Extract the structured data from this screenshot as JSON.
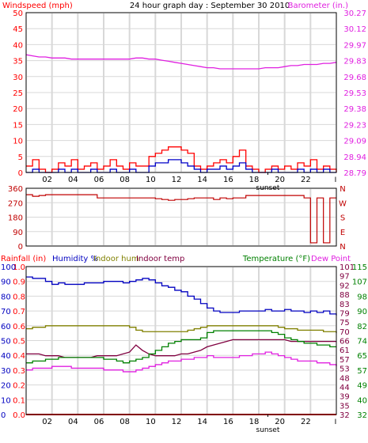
{
  "colors": {
    "grid": "#d8d8d8",
    "windspeed": "#ff0000",
    "windavg": "#0000c8",
    "barometer": "#e020e0",
    "winddir": "#c00000",
    "rain": "#ff0000",
    "humidity": "#0000c0",
    "indoor_hum": "#808000",
    "indoor_temp": "#800040",
    "temperature": "#008000",
    "dewpoint": "#e020e0"
  },
  "header": {
    "title": "24 hour graph day : September 30 2010"
  },
  "x_axis": {
    "hour_labels": [
      "02",
      "04",
      "06",
      "08",
      "10",
      "12",
      "14",
      "16",
      "18",
      "20",
      "22"
    ],
    "end_tick": "I",
    "sunset_label": "sunset"
  },
  "chart_data": [
    {
      "type": "line",
      "panel": "wind-barometer",
      "ylabel": "Windspeed (mph)",
      "ylabel_right": "Barometer (in.)",
      "ylim": [
        0,
        50
      ],
      "yticks": [
        "50",
        "45",
        "40",
        "35",
        "30",
        "25",
        "20",
        "15",
        "10",
        "5",
        "0"
      ],
      "y2lim": [
        28.79,
        30.27
      ],
      "y2ticks": [
        "30.27",
        "30.12",
        "29.97",
        "29.83",
        "29.68",
        "29.53",
        "29.38",
        "29.23",
        "29.09",
        "28.94",
        "28.79"
      ],
      "x": [
        0,
        0.5,
        1,
        1.5,
        2,
        2.5,
        3,
        3.5,
        4,
        4.5,
        5,
        5.5,
        6,
        6.5,
        7,
        7.5,
        8,
        8.5,
        9,
        9.5,
        10,
        10.5,
        11,
        11.5,
        12,
        12.5,
        13,
        13.5,
        14,
        14.5,
        15,
        15.5,
        16,
        16.5,
        17,
        17.5,
        18,
        18.5,
        19,
        19.5,
        20,
        20.5,
        21,
        21.5,
        22,
        22.5,
        23,
        23.5,
        24
      ],
      "series": [
        {
          "name": "Windspeed",
          "values": [
            2,
            4,
            1,
            0,
            1,
            3,
            2,
            4,
            1,
            2,
            3,
            1,
            2,
            4,
            2,
            1,
            3,
            2,
            2,
            5,
            6,
            7,
            8,
            8,
            7,
            6,
            2,
            1,
            2,
            3,
            4,
            3,
            5,
            7,
            2,
            1,
            0,
            1,
            2,
            1,
            2,
            1,
            3,
            2,
            4,
            1,
            2,
            1,
            0
          ]
        },
        {
          "values": [
            0,
            1,
            0,
            0,
            0,
            1,
            0,
            1,
            0,
            0,
            1,
            0,
            0,
            1,
            0,
            0,
            1,
            0,
            0,
            2,
            3,
            3,
            4,
            4,
            3,
            2,
            1,
            0,
            1,
            1,
            2,
            1,
            2,
            3,
            1,
            0,
            0,
            0,
            1,
            0,
            0,
            0,
            1,
            0,
            1,
            0,
            1,
            0,
            0
          ]
        },
        {
          "name": "Barometer",
          "values": [
            29.88,
            29.87,
            29.86,
            29.86,
            29.85,
            29.85,
            29.85,
            29.84,
            29.84,
            29.84,
            29.84,
            29.84,
            29.84,
            29.84,
            29.84,
            29.84,
            29.84,
            29.85,
            29.85,
            29.84,
            29.84,
            29.83,
            29.82,
            29.81,
            29.8,
            29.79,
            29.78,
            29.77,
            29.76,
            29.76,
            29.75,
            29.75,
            29.75,
            29.75,
            29.75,
            29.75,
            29.75,
            29.76,
            29.76,
            29.76,
            29.77,
            29.78,
            29.78,
            29.79,
            29.79,
            29.79,
            29.8,
            29.8,
            29.81
          ]
        }
      ]
    },
    {
      "type": "line",
      "panel": "wind-direction",
      "ylim": [
        0,
        360
      ],
      "yticks": [
        "360",
        "270",
        "180",
        "90",
        "0"
      ],
      "y2ticks": [
        "N",
        "W",
        "S",
        "E",
        "N"
      ],
      "x": [
        0,
        0.5,
        1,
        1.5,
        2,
        2.5,
        3,
        3.5,
        4,
        4.5,
        5,
        5.5,
        6,
        6.5,
        7,
        7.5,
        8,
        8.5,
        9,
        9.5,
        10,
        10.5,
        11,
        11.5,
        12,
        12.5,
        13,
        13.5,
        14,
        14.5,
        15,
        15.5,
        16,
        16.5,
        17,
        17.5,
        18,
        18.5,
        19,
        19.5,
        20,
        20.5,
        21,
        21.5,
        22,
        22.5,
        23,
        23.5,
        24
      ],
      "series": [
        {
          "values": [
            320,
            310,
            315,
            320,
            320,
            320,
            320,
            320,
            320,
            320,
            320,
            300,
            300,
            300,
            300,
            300,
            300,
            300,
            300,
            300,
            295,
            290,
            285,
            290,
            290,
            295,
            300,
            300,
            300,
            290,
            300,
            295,
            300,
            300,
            315,
            315,
            315,
            315,
            315,
            315,
            315,
            315,
            315,
            300,
            20,
            300,
            20,
            300,
            300
          ]
        }
      ]
    },
    {
      "type": "line",
      "panel": "temperature-humidity",
      "ylabel": "Rainfall (in)",
      "legend": [
        "Humidity %",
        "Indoor hum",
        "Indoor temp",
        "Temperature (°F)",
        "Dew Point"
      ],
      "ylim": [
        0,
        1.0
      ],
      "yticks_rain": [
        "1.0",
        "0.9",
        "0.8",
        "0.7",
        "0.6",
        "0.5",
        "0.4",
        "0.3",
        "0.2",
        "0.1",
        "0.0"
      ],
      "yticks_humidity": [
        "100",
        "90",
        "80",
        "70",
        "60",
        "50",
        "40",
        "30",
        "20",
        "10",
        "0"
      ],
      "yticks_temp_inner": [
        "101",
        "97",
        "92",
        "88",
        "83",
        "79",
        "75",
        "70",
        "66",
        "61",
        "57",
        "53",
        "48",
        "44",
        "39",
        "35",
        "32"
      ],
      "yticks_temp_outer": [
        "115",
        "107",
        "98",
        "90",
        "82",
        "74",
        "65",
        "57",
        "49",
        "40",
        "32"
      ],
      "x": [
        0,
        0.5,
        1,
        1.5,
        2,
        2.5,
        3,
        3.5,
        4,
        4.5,
        5,
        5.5,
        6,
        6.5,
        7,
        7.5,
        8,
        8.5,
        9,
        9.5,
        10,
        10.5,
        11,
        11.5,
        12,
        12.5,
        13,
        13.5,
        14,
        14.5,
        15,
        15.5,
        16,
        16.5,
        17,
        17.5,
        18,
        18.5,
        19,
        19.5,
        20,
        20.5,
        21,
        21.5,
        22,
        22.5,
        23,
        23.5,
        24
      ],
      "series": [
        {
          "name": "Humidity %",
          "values": [
            93,
            92,
            92,
            90,
            88,
            89,
            88,
            88,
            88,
            89,
            89,
            89,
            90,
            90,
            90,
            89,
            90,
            91,
            92,
            91,
            89,
            87,
            86,
            84,
            83,
            80,
            78,
            75,
            72,
            70,
            69,
            69,
            69,
            70,
            70,
            70,
            70,
            71,
            70,
            70,
            71,
            70,
            70,
            69,
            70,
            69,
            70,
            68,
            67
          ]
        },
        {
          "name": "Indoor hum",
          "values": [
            58,
            59,
            59,
            60,
            60,
            60,
            60,
            60,
            60,
            60,
            60,
            60,
            60,
            60,
            60,
            60,
            59,
            57,
            56,
            56,
            56,
            56,
            56,
            56,
            56,
            57,
            58,
            59,
            60,
            60,
            60,
            60,
            60,
            60,
            60,
            60,
            60,
            60,
            60,
            59,
            58,
            58,
            57,
            57,
            57,
            57,
            56,
            56,
            55
          ]
        },
        {
          "name": "Indoor temp",
          "values": [
            66,
            66,
            66,
            65,
            65,
            65,
            64,
            64,
            64,
            64,
            64,
            65,
            65,
            65,
            65,
            66,
            67,
            71,
            68,
            66,
            65,
            65,
            65,
            65,
            66,
            66,
            67,
            68,
            70,
            71,
            72,
            73,
            74,
            74,
            74,
            74,
            74,
            74,
            74,
            74,
            74,
            73,
            73,
            73,
            73,
            73,
            73,
            73,
            73
          ]
        },
        {
          "name": "Temperature (°F)",
          "values": [
            61,
            62,
            62,
            63,
            63,
            64,
            64,
            64,
            64,
            64,
            64,
            64,
            63,
            63,
            62,
            61,
            62,
            63,
            64,
            66,
            68,
            70,
            72,
            73,
            74,
            74,
            74,
            75,
            78,
            79,
            79,
            79,
            79,
            79,
            79,
            79,
            79,
            79,
            78,
            77,
            75,
            74,
            73,
            72,
            72,
            71,
            71,
            70,
            70
          ]
        },
        {
          "name": "Dew Point",
          "values": [
            57,
            58,
            58,
            58,
            59,
            59,
            59,
            58,
            58,
            58,
            58,
            58,
            57,
            57,
            57,
            56,
            56,
            57,
            58,
            59,
            60,
            61,
            62,
            62,
            63,
            63,
            64,
            64,
            65,
            64,
            64,
            64,
            64,
            65,
            65,
            66,
            66,
            67,
            66,
            65,
            64,
            63,
            62,
            62,
            62,
            61,
            61,
            60,
            59
          ]
        },
        {
          "name": "Rainfall (in)",
          "values": [
            0,
            0,
            0,
            0,
            0,
            0,
            0,
            0,
            0,
            0,
            0,
            0,
            0,
            0,
            0,
            0,
            0,
            0,
            0,
            0,
            0,
            0,
            0,
            0,
            0,
            0,
            0,
            0,
            0,
            0,
            0,
            0,
            0,
            0,
            0,
            0,
            0,
            0,
            0,
            0,
            0,
            0,
            0,
            0,
            0,
            0,
            0,
            0,
            0
          ]
        }
      ]
    }
  ]
}
